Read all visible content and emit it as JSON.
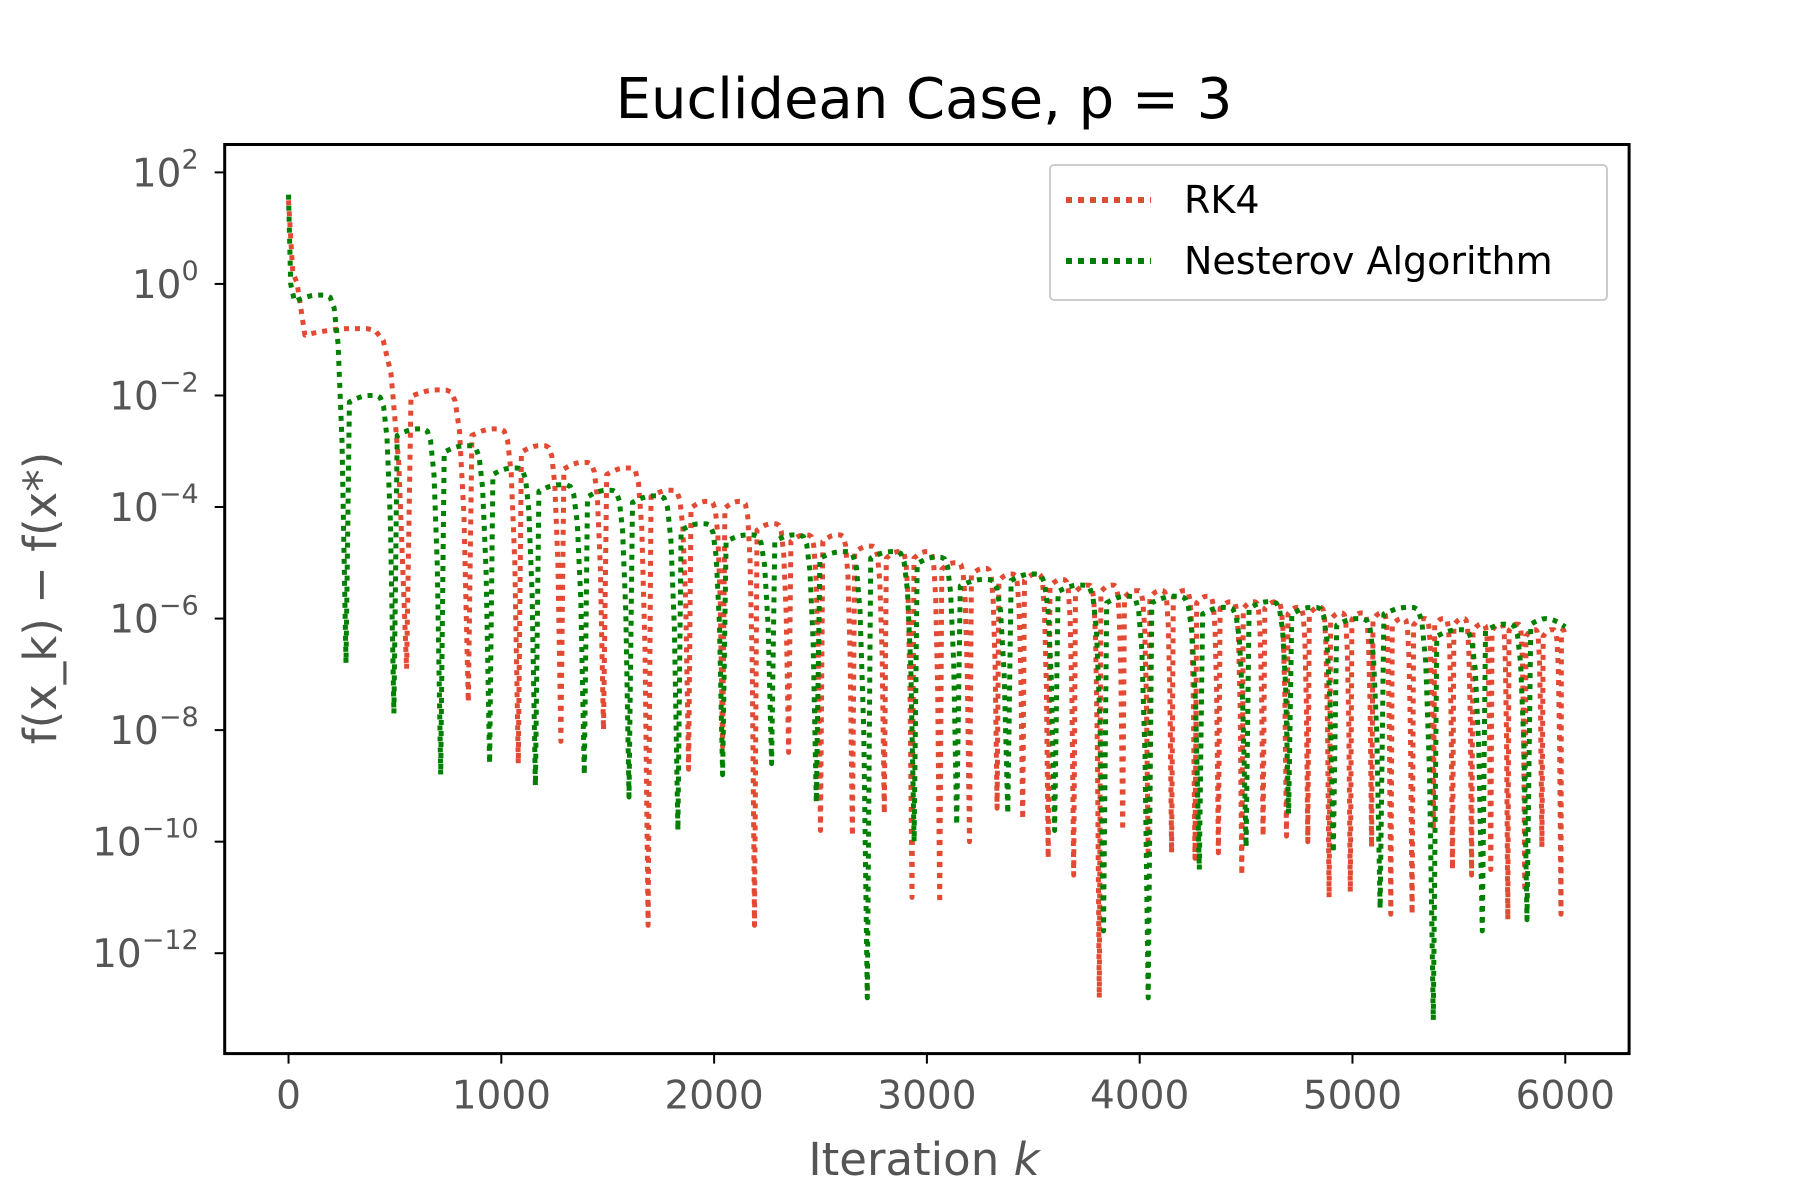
{
  "chart_data": {
    "type": "line",
    "title": "Euclidean Case, p = 3",
    "xlabel": "Iteration",
    "xlabel_var": "k",
    "ylabel": "f(x_k) − f(x*)",
    "xlim": [
      -300,
      6300
    ],
    "ylim_log10": [
      -13.8,
      2.5
    ],
    "y_scale": "log",
    "grid": false,
    "legend_position": "top-right",
    "x_ticks": [
      0,
      1000,
      2000,
      3000,
      4000,
      5000,
      6000
    ],
    "x_tick_labels": [
      "0",
      "1000",
      "2000",
      "3000",
      "4000",
      "5000",
      "6000"
    ],
    "y_ticks_exp": [
      2,
      0,
      -2,
      -4,
      -6,
      -8,
      -10,
      -12
    ],
    "y_tick_labels": [
      {
        "base": "10",
        "exp": "2"
      },
      {
        "base": "10",
        "exp": "0"
      },
      {
        "base": "10",
        "exp": "−2"
      },
      {
        "base": "10",
        "exp": "−4"
      },
      {
        "base": "10",
        "exp": "−6"
      },
      {
        "base": "10",
        "exp": "−8"
      },
      {
        "base": "10",
        "exp": "−10"
      },
      {
        "base": "10",
        "exp": "−12"
      }
    ],
    "series": [
      {
        "name": "RK4",
        "color": "#e24a33",
        "style": "dotted",
        "start": [
          [
            0,
            1.5
          ],
          [
            20,
            0.2
          ],
          [
            40,
            0.02
          ]
        ],
        "start_exp": [
          0,
          1.5
        ],
        "minima_x": [
          555,
          845,
          1080,
          1280,
          1480,
          1690,
          1880,
          2040,
          2190,
          2350,
          2500,
          2650,
          2800,
          2930,
          3060,
          3200,
          3330,
          3450,
          3570,
          3690,
          3810,
          3920,
          4040,
          4150,
          4260,
          4370,
          4480,
          4580,
          4690,
          4790,
          4890,
          4990,
          5090,
          5180,
          5280,
          5380,
          5470,
          5560,
          5650,
          5730,
          5810,
          5890,
          5980
        ],
        "minima_log10": [
          -6.9,
          -7.5,
          -8.6,
          -8.2,
          -8.0,
          -11.5,
          -8.7,
          -8.3,
          -11.5,
          -8.4,
          -9.8,
          -9.9,
          -9.5,
          -11.0,
          -11.1,
          -10.0,
          -9.4,
          -9.6,
          -10.3,
          -10.6,
          -12.8,
          -9.8,
          -10.3,
          -10.2,
          -10.3,
          -10.2,
          -10.6,
          -9.9,
          -9.9,
          -10.0,
          -11.0,
          -10.9,
          -10.1,
          -11.3,
          -11.3,
          -9.8,
          -10.5,
          -10.6,
          -10.5,
          -11.4,
          -10.9,
          -10.1,
          -11.3
        ],
        "peak_log10": [
          -0.8,
          -1.9,
          -2.6,
          -2.9,
          -3.2,
          -3.3,
          -3.7,
          -3.9,
          -3.9,
          -4.3,
          -4.5,
          -4.5,
          -4.7,
          -4.8,
          -4.8,
          -5.0,
          -5.1,
          -5.2,
          -5.2,
          -5.3,
          -5.4,
          -5.4,
          -5.5,
          -5.5,
          -5.5,
          -5.6,
          -5.7,
          -5.7,
          -5.7,
          -5.8,
          -5.8,
          -5.9,
          -5.9,
          -5.9,
          -6.0,
          -6.0,
          -6.0,
          -6.0,
          -6.1,
          -6.1,
          -6.1,
          -6.2,
          -6.2,
          -6.2
        ]
      },
      {
        "name": "Nesterov Algorithm",
        "color": "#008000",
        "style": "dotted",
        "start": [
          [
            0,
            1.6
          ],
          [
            10,
            0.0
          ]
        ],
        "start_exp": [
          0,
          1.6
        ],
        "minima_x": [
          270,
          495,
          715,
          945,
          1160,
          1390,
          1600,
          1830,
          2040,
          2270,
          2480,
          2720,
          2940,
          3140,
          3380,
          3600,
          3830,
          4040,
          4280,
          4500,
          4700,
          4910,
          5130,
          5380,
          5610,
          5820
        ],
        "minima_log10": [
          -6.8,
          -7.7,
          -8.8,
          -8.6,
          -9.0,
          -8.8,
          -9.2,
          -9.8,
          -8.8,
          -8.6,
          -9.3,
          -12.8,
          -10.0,
          -9.7,
          -9.5,
          -9.8,
          -11.6,
          -12.8,
          -10.5,
          -10.1,
          -9.5,
          -10.2,
          -11.2,
          -13.2,
          -11.6,
          -11.4
        ],
        "peak_log10": [
          -0.2,
          -2.0,
          -2.6,
          -2.9,
          -3.3,
          -3.6,
          -3.7,
          -3.8,
          -4.3,
          -4.5,
          -4.5,
          -4.8,
          -4.8,
          -4.9,
          -5.3,
          -5.2,
          -5.4,
          -5.6,
          -5.6,
          -5.8,
          -5.7,
          -5.8,
          -6.0,
          -5.8,
          -6.2,
          -6.1,
          -6.0
        ]
      }
    ]
  }
}
